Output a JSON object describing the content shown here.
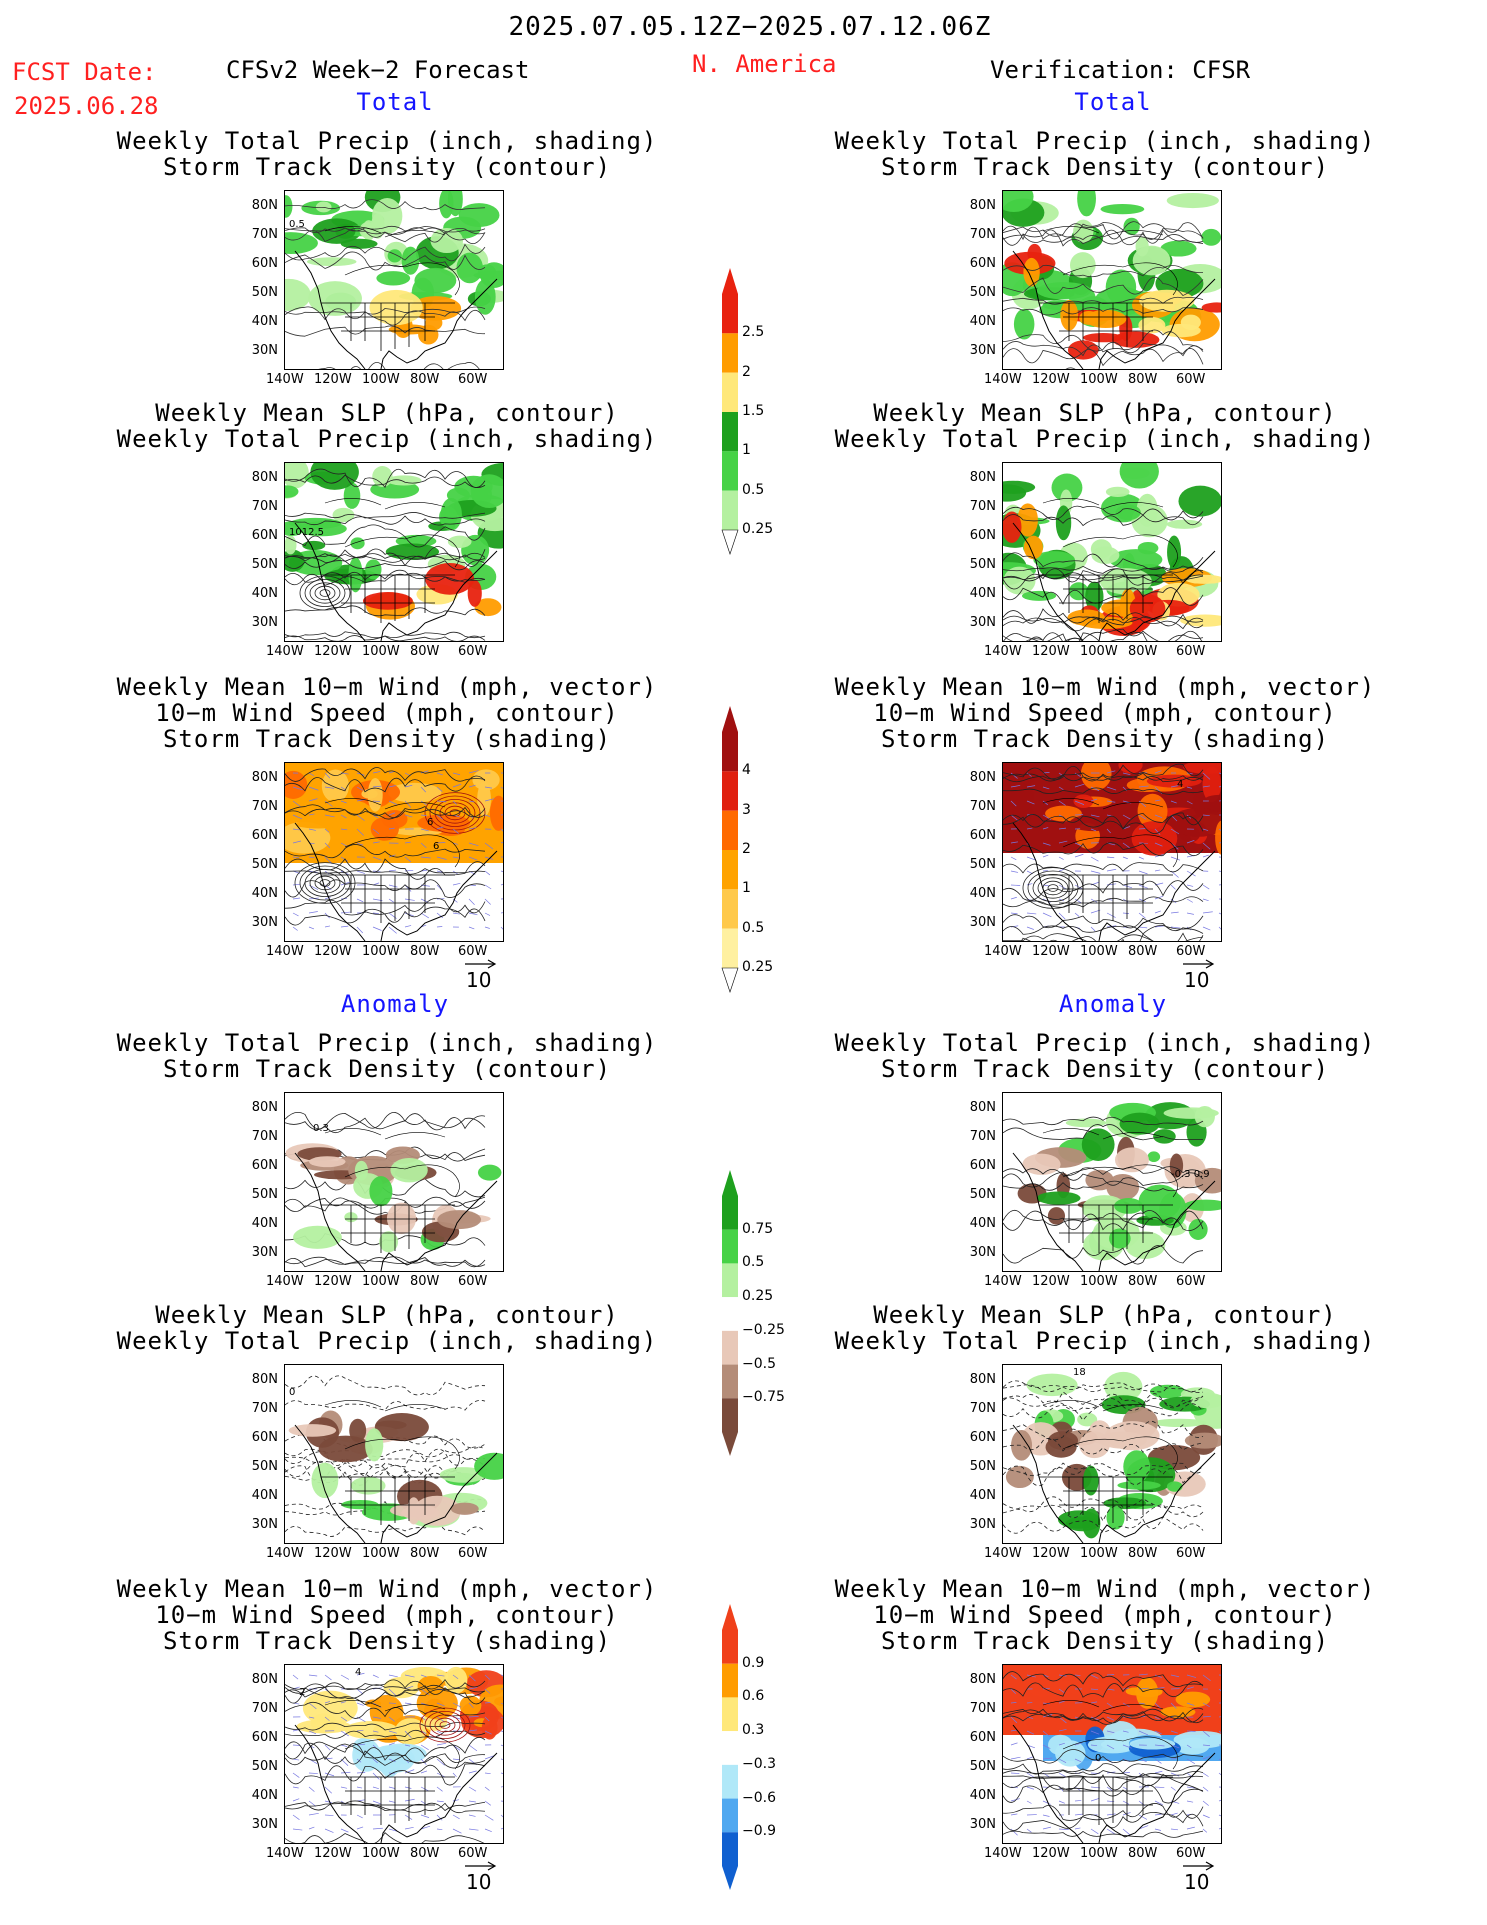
{
  "header": {
    "date_range": "2025.07.05.12Z−2025.07.12.06Z",
    "fcst_label": "FCST Date:",
    "fcst_date": "2025.06.28",
    "model": "CFSv2 Week−2 Forecast",
    "region": "N. America",
    "verification": "Verification: CFSR"
  },
  "sections": {
    "total": "Total",
    "anomaly": "Anomaly"
  },
  "titles": {
    "precip_track": [
      "Weekly Total Precip (inch, shading)",
      "Storm Track Density (contour)"
    ],
    "slp_precip": [
      "Weekly Mean SLP (hPa, contour)",
      "Weekly Total Precip (inch, shading)"
    ],
    "wind_track": [
      "Weekly Mean 10−m Wind (mph, vector)",
      "10−m Wind Speed (mph, contour)",
      "Storm Track Density (shading)"
    ]
  },
  "axes": {
    "lat_labels": [
      "80N",
      "70N",
      "60N",
      "50N",
      "40N",
      "30N"
    ],
    "lon_labels": [
      "140W",
      "120W",
      "100W",
      "80W",
      "60W"
    ]
  },
  "vector_ref": "10",
  "map_labels": {
    "p1_left": "0.5",
    "p2_left": "1012.5",
    "p3_left_a": "6",
    "p3_left_b": "6",
    "p3_right": "4",
    "p4_left": "0.3",
    "p4_right": "-0.3 0.9",
    "p5_left": "0",
    "p5_right": "18",
    "p6_left_a": "4",
    "p6_left_b": "2",
    "p6_right": "0"
  },
  "colorbars": {
    "precip_total": {
      "labels": [
        "2.5",
        "2",
        "1.5",
        "1",
        "0.5",
        "0.25"
      ],
      "colors": [
        "#e8220f",
        "#ff9c00",
        "#ffe87a",
        "#1ea01e",
        "#46d246",
        "#b4f0a0"
      ]
    },
    "track_total": {
      "labels": [
        "4",
        "3",
        "2",
        "1",
        "0.5",
        "0.25"
      ],
      "colors": [
        "#a01010",
        "#e0200f",
        "#ff6a00",
        "#ffa300",
        "#ffc94a",
        "#fff0a0"
      ]
    },
    "precip_anom": {
      "labels": [
        "0.75",
        "0.5",
        "0.25",
        "−0.25",
        "−0.5",
        "−0.75"
      ],
      "colors": [
        "#1ea01e",
        "#46d246",
        "#b4f0a0",
        "#ffffff",
        "#e8c8b8",
        "#b48c78",
        "#7a4a3a"
      ]
    },
    "track_anom": {
      "labels": [
        "0.9",
        "0.6",
        "0.3",
        "−0.3",
        "−0.6",
        "−0.9"
      ],
      "colors": [
        "#f0401a",
        "#ff9c00",
        "#ffe87a",
        "#ffffff",
        "#b0e8f8",
        "#50a8f0",
        "#1060d0"
      ]
    }
  }
}
